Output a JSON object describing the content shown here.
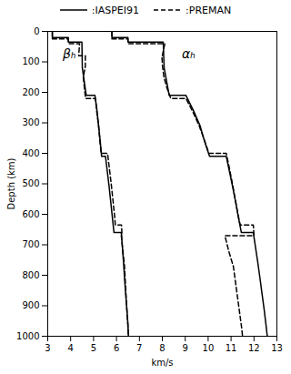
{
  "chart_data": {
    "type": "line",
    "xlabel": "km/s",
    "ylabel": "Depth (km)",
    "xlim": [
      3,
      13
    ],
    "ylim": [
      1000,
      0
    ],
    "xticks": [
      3,
      4,
      5,
      6,
      7,
      8,
      9,
      10,
      11,
      12,
      13
    ],
    "yticks": [
      0,
      100,
      200,
      300,
      400,
      500,
      600,
      700,
      800,
      900,
      1000
    ],
    "grid": false,
    "legend": "top",
    "series": [
      {
        "name": ":IASPEI91",
        "color": "black",
        "line_style": "solid",
        "x": [
          3.2,
          3.2,
          3.9,
          3.9,
          4.49,
          4.51,
          4.68,
          5.06,
          5.15,
          5.22,
          5.29,
          5.35,
          5.52,
          5.6,
          5.68,
          5.75,
          5.82,
          5.89,
          6.21,
          6.26,
          6.31,
          6.35,
          6.35,
          6.4,
          6.45,
          6.5,
          6.52
        ],
        "values": [
          0,
          20,
          20,
          35,
          35,
          120,
          210,
          210,
          260,
          310,
          360,
          410,
          410,
          460,
          510,
          560,
          610,
          660,
          660,
          710,
          760,
          809,
          809,
          860,
          910,
          960,
          1000
        ]
      },
      {
        "color": "black",
        "line_style": "solid",
        "x": [
          5.8,
          5.8,
          6.5,
          6.5,
          8.04,
          8.08,
          8.3,
          9.03,
          9.36,
          9.65,
          9.84,
          10.06,
          10.79,
          10.93,
          11.07,
          11.2,
          11.32,
          11.45,
          11.97,
          12.07,
          12.17,
          12.26,
          12.26,
          12.35,
          12.44,
          12.52,
          12.58
        ],
        "values": [
          0,
          20,
          20,
          35,
          35,
          120,
          210,
          210,
          260,
          310,
          360,
          410,
          410,
          460,
          510,
          560,
          610,
          660,
          660,
          710,
          760,
          809,
          809,
          860,
          910,
          960,
          1000
        ]
      },
      {
        "name": ":PREMAN",
        "color": "black",
        "line_style": "dashed",
        "x": [
          3.2,
          3.2,
          3.2,
          3.2,
          3.9,
          3.9,
          4.39,
          4.35,
          4.64,
          4.64,
          4.55,
          4.6,
          4.65,
          5.08,
          5.14,
          5.22,
          5.27,
          5.33,
          5.61,
          5.69,
          5.77,
          5.84,
          5.91,
          5.95,
          6.22,
          6.24,
          6.21,
          6.28,
          6.35,
          6.42,
          6.5,
          6.52
        ],
        "values": [
          0,
          15,
          15,
          24.4,
          24.4,
          40,
          40,
          80,
          80,
          115,
          150,
          185,
          220,
          220,
          265,
          310,
          355,
          400,
          400,
          450,
          500,
          550,
          600,
          635,
          635,
          670,
          670,
          721,
          771,
          871,
          971,
          1000
        ]
      },
      {
        "color": "black",
        "line_style": "dashed",
        "x": [
          5.8,
          5.8,
          5.8,
          5.8,
          6.5,
          6.5,
          8.11,
          8.0,
          7.98,
          8.01,
          8.07,
          8.2,
          8.37,
          9.03,
          9.34,
          9.61,
          9.83,
          10.03,
          10.79,
          10.93,
          11.06,
          11.18,
          11.3,
          11.4,
          11.97,
          12.0,
          10.73,
          10.9,
          11.1,
          11.28,
          11.46,
          11.5
        ],
        "values": [
          0,
          15,
          15,
          24.4,
          24.4,
          40,
          40,
          80,
          80,
          115,
          150,
          185,
          220,
          220,
          265,
          310,
          355,
          400,
          400,
          450,
          500,
          550,
          600,
          635,
          635,
          670,
          670,
          721,
          771,
          871,
          971,
          1000
        ]
      }
    ],
    "annotations": [
      {
        "text": "βₕ",
        "x": 4.3,
        "y": 75
      },
      {
        "text": "αₕ",
        "x": 9.15,
        "y": 75
      }
    ]
  }
}
